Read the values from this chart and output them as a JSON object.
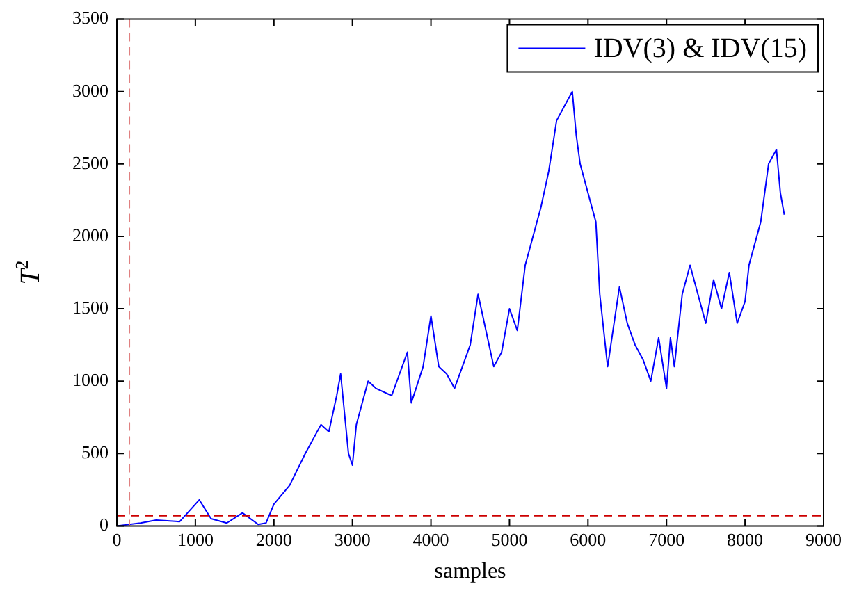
{
  "chart_data": {
    "type": "line",
    "xlabel": "samples",
    "ylabel": "T$^{2}$",
    "x": [
      0,
      300,
      500,
      800,
      1000,
      1050,
      1200,
      1400,
      1600,
      1800,
      1900,
      2000,
      2200,
      2400,
      2600,
      2700,
      2800,
      2850,
      2950,
      3000,
      3050,
      3200,
      3300,
      3500,
      3700,
      3750,
      3900,
      4000,
      4100,
      4200,
      4300,
      4400,
      4500,
      4600,
      4700,
      4800,
      4900,
      5000,
      5100,
      5200,
      5400,
      5500,
      5600,
      5700,
      5800,
      5850,
      5900,
      6000,
      6100,
      6150,
      6250,
      6400,
      6500,
      6600,
      6700,
      6800,
      6900,
      7000,
      7050,
      7100,
      7200,
      7300,
      7400,
      7500,
      7600,
      7700,
      7800,
      7900,
      8000,
      8050,
      8200,
      8300,
      8400,
      8450,
      8500
    ],
    "series": [
      {
        "name": "IDV(3) & IDV(15)",
        "color": "#0000ff",
        "values": [
          0,
          20,
          40,
          30,
          150,
          180,
          50,
          20,
          90,
          10,
          20,
          150,
          280,
          500,
          700,
          650,
          900,
          1050,
          500,
          420,
          700,
          1000,
          950,
          900,
          1200,
          850,
          1100,
          1450,
          1100,
          1050,
          950,
          1100,
          1250,
          1600,
          1350,
          1100,
          1200,
          1500,
          1350,
          1800,
          2200,
          2450,
          2800,
          2900,
          3000,
          2700,
          2500,
          2300,
          2100,
          1600,
          1100,
          1650,
          1400,
          1250,
          1150,
          1000,
          1300,
          950,
          1300,
          1100,
          1600,
          1800,
          1600,
          1400,
          1700,
          1500,
          1750,
          1400,
          1550,
          1800,
          2100,
          2500,
          2600,
          2300,
          2150
        ]
      }
    ],
    "xlim": [
      0,
      9000
    ],
    "xticks": [
      0,
      1000,
      2000,
      3000,
      4000,
      5000,
      6000,
      7000,
      8000,
      9000
    ],
    "ylim": [
      0,
      3500
    ],
    "yticks": [
      0,
      500,
      1000,
      1500,
      2000,
      2500,
      3000,
      3500
    ],
    "ref_lines": [
      {
        "axis": "x",
        "value": 160,
        "color": "#e08080",
        "line_style": "dashed"
      },
      {
        "axis": "y",
        "value": 70,
        "color": "#cc0000",
        "line_style": "dashed"
      }
    ],
    "grid": false,
    "legend": "top right",
    "marker": "none",
    "line_style": "solid"
  }
}
